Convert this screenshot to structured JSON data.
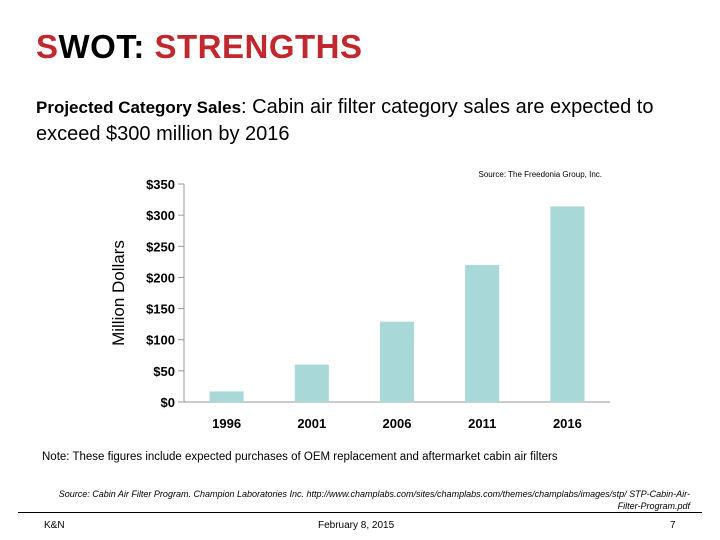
{
  "slide": {
    "title_s": "S",
    "title_wot": "WOT: ",
    "title_rest": "STRENGTHS",
    "subtitle_bold": "Projected Category Sales",
    "subtitle_text": ": Cabin air filter category sales are expected to exceed $300 million by 2016",
    "note": "Note: These figures include expected purchases of OEM replacement and aftermarket cabin air filters",
    "source": "Source: Cabin Air Filter Program. Champion Laboratories Inc. http://www.champlabs.com/sites/champlabs.com/themes/champlabs/images/stp/ STP-Cabin-Air-Filter-Program.pdf",
    "footer_left": "K&N",
    "footer_center": "February 8, 2015",
    "footer_right": "7"
  },
  "chart_data": {
    "type": "bar",
    "categories": [
      "1996",
      "2001",
      "2006",
      "2011",
      "2016"
    ],
    "values": [
      17,
      60,
      129,
      220,
      314
    ],
    "ylabel": "Million Dollars",
    "ylim": [
      0,
      350
    ],
    "yticks": [
      0,
      50,
      100,
      150,
      200,
      250,
      300,
      350
    ],
    "ytick_labels": [
      "$0",
      "$50",
      "$100",
      "$150",
      "$200",
      "$250",
      "$300",
      "$350"
    ],
    "source_label": "Source: The Freedonia Group, Inc.",
    "bar_color": "#a8d8d8",
    "grid": false
  }
}
